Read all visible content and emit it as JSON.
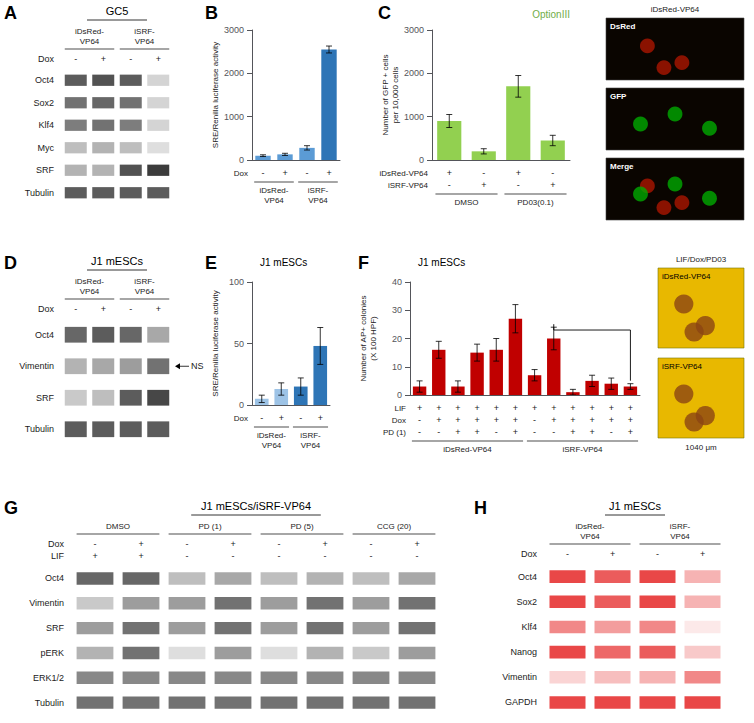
{
  "chart_data": [
    {
      "type": "blot",
      "panel_label": "A",
      "title": "GC5",
      "groups": [
        "iDsRed-\nVP64",
        "iSRF-\nVP64"
      ],
      "row_labels": [
        {
          "name": "Dox",
          "values": [
            "-",
            "+",
            "-",
            "+"
          ]
        }
      ],
      "genes": [
        "Oct4",
        "Sox2",
        "Klf4",
        "Myc",
        "SRF",
        "Tubulin"
      ],
      "cells": [
        [
          0.75,
          0.8,
          0.75,
          0.2
        ],
        [
          0.65,
          0.7,
          0.65,
          0.2
        ],
        [
          0.6,
          0.65,
          0.6,
          0.2
        ],
        [
          0.3,
          0.35,
          0.3,
          0.15
        ],
        [
          0.35,
          0.35,
          0.8,
          0.9
        ],
        [
          0.75,
          0.75,
          0.75,
          0.75
        ]
      ],
      "color": "#000000"
    },
    {
      "type": "bar",
      "panel_label": "B",
      "ylabel": "SRE/Renilla luciferase activity",
      "values": [
        100,
        130,
        280,
        2550
      ],
      "errors": [
        20,
        25,
        50,
        80
      ],
      "colors": [
        "#5b9bd5",
        "#5b9bd5",
        "#5b9bd5",
        "#2e75b6"
      ],
      "ylim": [
        0,
        3000
      ],
      "yticks": [
        0,
        1000,
        2000,
        3000
      ],
      "grid": false,
      "tick_labels": "y",
      "row_labels": [
        {
          "name": "Dox",
          "values": [
            "-",
            "+",
            "-",
            "+"
          ]
        }
      ],
      "groups": [
        "iDsRed-\nVP64",
        "iSRF-\nVP64"
      ]
    },
    {
      "type": "bar",
      "panel_label": "C",
      "ylabel": "Number of GFP + cells\nper 10,000 cells",
      "annotations": [
        {
          "text": "OptionIII",
          "color": "#70ad47"
        }
      ],
      "values": [
        900,
        200,
        1700,
        450
      ],
      "errors": [
        150,
        60,
        250,
        120
      ],
      "color": "#92d050",
      "ylim": [
        0,
        3000
      ],
      "yticks": [
        0,
        1000,
        2000,
        3000
      ],
      "grid": false,
      "tick_labels": "y",
      "row_labels": [
        {
          "name": "iDsRed-VP64",
          "values": [
            "+",
            "-",
            "+",
            "-"
          ]
        },
        {
          "name": "iSRF-VP64",
          "values": [
            "-",
            "+",
            "-",
            "+"
          ]
        }
      ],
      "groups": [
        "DMSO",
        "PD03(0.1)"
      ]
    },
    {
      "type": "image",
      "title": "iDsRed-VP64",
      "panels": [
        "DsRed",
        "GFP",
        "Merge"
      ],
      "colors": [
        "#aa1500",
        "#00aa00"
      ]
    },
    {
      "type": "blot",
      "panel_label": "D",
      "title": "J1 mESCs",
      "groups": [
        "iDsRed-\nVP64",
        "iSRF-\nVP64"
      ],
      "row_labels": [
        {
          "name": "Dox",
          "values": [
            "-",
            "+",
            "-",
            "+"
          ]
        }
      ],
      "genes": [
        "Oct4",
        "Vimentin",
        "SRF",
        "Tubulin"
      ],
      "cells": [
        [
          0.7,
          0.75,
          0.7,
          0.4
        ],
        [
          0.35,
          0.4,
          0.45,
          0.65
        ],
        [
          0.25,
          0.3,
          0.75,
          0.85
        ],
        [
          0.75,
          0.75,
          0.75,
          0.75
        ]
      ],
      "annotations": [
        {
          "text": "NS",
          "gene": "Vimentin"
        }
      ],
      "color": "#000000"
    },
    {
      "type": "bar",
      "panel_label": "E",
      "subtitle": "J1 mESCs",
      "ylabel": "SRE/Renilla luciferase activity",
      "values": [
        5,
        13,
        15,
        48
      ],
      "errors": [
        3,
        5,
        7,
        15
      ],
      "colors": [
        "#9dc3e6",
        "#9dc3e6",
        "#2e75b6",
        "#2e75b6"
      ],
      "ylim": [
        0,
        100
      ],
      "yticks": [
        0,
        50,
        100
      ],
      "grid": false,
      "tick_labels": "y",
      "row_labels": [
        {
          "name": "Dox",
          "values": [
            "-",
            "+",
            "-",
            "+"
          ]
        }
      ],
      "groups": [
        "iDsRed-\nVP64",
        "iSRF-\nVP64"
      ]
    },
    {
      "type": "bar",
      "panel_label": "F",
      "subtitle": "J1 mESCs",
      "ylabel": "Number of AP+ colonies\n(X 100 HPF)",
      "values": [
        3,
        16,
        3,
        15,
        16,
        27,
        7,
        20,
        1,
        5,
        4,
        3
      ],
      "errors": [
        2,
        3,
        2,
        3,
        4,
        5,
        2,
        4,
        1,
        2,
        2,
        1
      ],
      "color": "#c00000",
      "ylim": [
        0,
        40
      ],
      "yticks": [
        0,
        10,
        20,
        30,
        40
      ],
      "grid": false,
      "tick_labels": "y",
      "row_labels": [
        {
          "name": "LIF",
          "values": [
            "+",
            "+",
            "+",
            "+",
            "+",
            "+",
            "+",
            "+",
            "+",
            "+",
            "+",
            "+"
          ]
        },
        {
          "name": "Dox",
          "values": [
            "-",
            "+",
            "+",
            "+",
            "+",
            "+",
            "-",
            "+",
            "+",
            "+",
            "+",
            "+"
          ]
        },
        {
          "name": "PD (1)",
          "values": [
            "-",
            "-",
            "+",
            "+",
            "-",
            "+",
            "-",
            "-",
            "+",
            "+",
            "-",
            "+"
          ]
        }
      ],
      "groups": [
        "iDsRed-VP64",
        "iSRF-VP64"
      ],
      "brackets": [
        {
          "bars": [
            7,
            11
          ],
          "y": 23
        }
      ]
    },
    {
      "type": "image",
      "title": "LIF/Dox/PD03",
      "panels": [
        "iDsRed-VP64",
        "iSRF-VP64"
      ],
      "colors": [
        "#8B4513"
      ],
      "annotations": [
        {
          "text": "1040 μm"
        }
      ]
    },
    {
      "type": "blot",
      "panel_label": "G",
      "title": "J1 mESCs/iSRF-VP64",
      "groups": [
        "DMSO",
        "PD (1)",
        "PD (5)",
        "CCG (20)"
      ],
      "row_labels": [
        {
          "name": "Dox",
          "values": [
            "-",
            "+",
            "-",
            "+",
            "-",
            "+",
            "-",
            "+"
          ]
        },
        {
          "name": "LIF",
          "values": [
            "+",
            "+",
            "-",
            "-",
            "-",
            "-",
            "-",
            "-"
          ]
        }
      ],
      "genes": [
        "Oct4",
        "Vimentin",
        "SRF",
        "pERK",
        "ERK1/2",
        "Tubulin"
      ],
      "cells": [
        [
          0.7,
          0.7,
          0.3,
          0.4,
          0.3,
          0.35,
          0.3,
          0.4
        ],
        [
          0.25,
          0.45,
          0.45,
          0.65,
          0.45,
          0.65,
          0.45,
          0.65
        ],
        [
          0.45,
          0.65,
          0.45,
          0.65,
          0.45,
          0.65,
          0.45,
          0.65
        ],
        [
          0.35,
          0.65,
          0.15,
          0.45,
          0.15,
          0.35,
          0.25,
          0.45
        ],
        [
          0.55,
          0.55,
          0.55,
          0.55,
          0.55,
          0.55,
          0.55,
          0.55
        ],
        [
          0.65,
          0.65,
          0.65,
          0.65,
          0.65,
          0.65,
          0.65,
          0.65
        ]
      ],
      "color": "#000000"
    },
    {
      "type": "blot",
      "panel_label": "H",
      "title": "J1 mESCs",
      "groups": [
        "iDsRed-\nVP64",
        "iSRF-\nVP64"
      ],
      "row_labels": [
        {
          "name": "Dox",
          "values": [
            "-",
            "+",
            "-",
            "+"
          ]
        }
      ],
      "genes": [
        "Oct4",
        "Sox2",
        "Klf4",
        "Nanog",
        "Vimentin",
        "GAPDH"
      ],
      "cells": [
        [
          0.85,
          0.75,
          0.85,
          0.35
        ],
        [
          0.85,
          0.75,
          0.85,
          0.35
        ],
        [
          0.55,
          0.45,
          0.55,
          0.1
        ],
        [
          0.85,
          0.7,
          0.75,
          0.25
        ],
        [
          0.2,
          0.3,
          0.35,
          0.55
        ],
        [
          0.85,
          0.85,
          0.85,
          0.85
        ]
      ],
      "color": "#e00000"
    }
  ]
}
